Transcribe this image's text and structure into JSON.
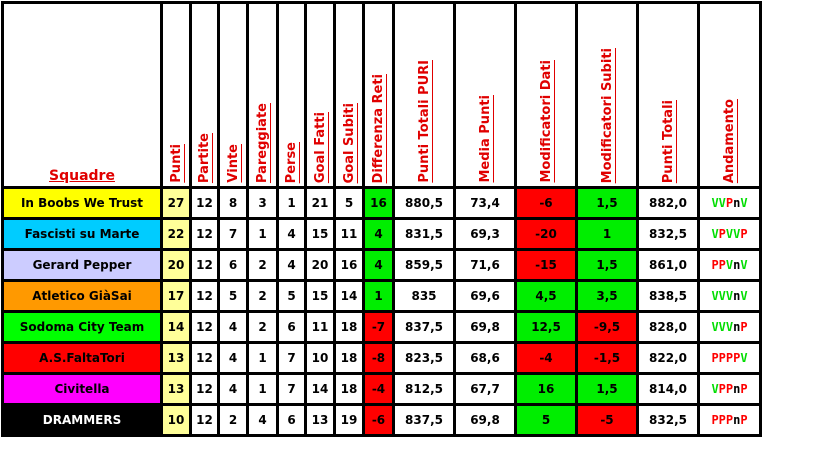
{
  "headers": [
    "Squadre",
    "Punti",
    "Partite",
    "Vinte",
    "Pareggiate",
    "Perse",
    "Goal Fatti",
    "Goal Subiti",
    "Differenza Reti",
    "Punti Totali PURI",
    "Media Punti",
    "Modificatori Dati",
    "Modificatori Subiti",
    "Punti Totali",
    "Andamento"
  ],
  "colors": {
    "positive": "#00ee00",
    "negative": "#ff0000",
    "punti_bg": "#ffff99",
    "win": "#00dd00",
    "loss": "#ff0000",
    "neutral": "#000000"
  },
  "rows": [
    {
      "team": "In Boobs We Trust",
      "team_bg": "#ffff00",
      "team_fg": "#000000",
      "punti": "27",
      "partite": "12",
      "vinte": "8",
      "pareggiate": "3",
      "perse": "1",
      "gf": "21",
      "gs": "5",
      "diff": "16",
      "puri": "880,5",
      "media": "73,4",
      "mod_dati": "-6",
      "mod_subiti": "1,5",
      "totali": "882,0",
      "andamento": "VVPnV"
    },
    {
      "team": "Fascisti su Marte",
      "team_bg": "#00ccff",
      "team_fg": "#000000",
      "punti": "22",
      "partite": "12",
      "vinte": "7",
      "pareggiate": "1",
      "perse": "4",
      "gf": "15",
      "gs": "11",
      "diff": "4",
      "puri": "831,5",
      "media": "69,3",
      "mod_dati": "-20",
      "mod_subiti": "1",
      "totali": "832,5",
      "andamento": "VPVVP"
    },
    {
      "team": "Gerard Pepper",
      "team_bg": "#ccccff",
      "team_fg": "#000000",
      "punti": "20",
      "partite": "12",
      "vinte": "6",
      "pareggiate": "2",
      "perse": "4",
      "gf": "20",
      "gs": "16",
      "diff": "4",
      "puri": "859,5",
      "media": "71,6",
      "mod_dati": "-15",
      "mod_subiti": "1,5",
      "totali": "861,0",
      "andamento": "PPVnV"
    },
    {
      "team": "Atletico GiàSai",
      "team_bg": "#ff9900",
      "team_fg": "#000000",
      "punti": "17",
      "partite": "12",
      "vinte": "5",
      "pareggiate": "2",
      "perse": "5",
      "gf": "15",
      "gs": "14",
      "diff": "1",
      "puri": "835",
      "media": "69,6",
      "mod_dati": "4,5",
      "mod_subiti": "3,5",
      "totali": "838,5",
      "andamento": "VVVnV"
    },
    {
      "team": "Sodoma City Team",
      "team_bg": "#00ff00",
      "team_fg": "#000000",
      "punti": "14",
      "partite": "12",
      "vinte": "4",
      "pareggiate": "2",
      "perse": "6",
      "gf": "11",
      "gs": "18",
      "diff": "-7",
      "puri": "837,5",
      "media": "69,8",
      "mod_dati": "12,5",
      "mod_subiti": "-9,5",
      "totali": "828,0",
      "andamento": "VVVnP"
    },
    {
      "team": "A.S.FaltaTori",
      "team_bg": "#ff0000",
      "team_fg": "#000000",
      "punti": "13",
      "partite": "12",
      "vinte": "4",
      "pareggiate": "1",
      "perse": "7",
      "gf": "10",
      "gs": "18",
      "diff": "-8",
      "puri": "823,5",
      "media": "68,6",
      "mod_dati": "-4",
      "mod_subiti": "-1,5",
      "totali": "822,0",
      "andamento": "PPPPV"
    },
    {
      "team": "Civitella",
      "team_bg": "#ff00ff",
      "team_fg": "#000000",
      "punti": "13",
      "partite": "12",
      "vinte": "4",
      "pareggiate": "1",
      "perse": "7",
      "gf": "14",
      "gs": "18",
      "diff": "-4",
      "puri": "812,5",
      "media": "67,7",
      "mod_dati": "16",
      "mod_subiti": "1,5",
      "totali": "814,0",
      "andamento": "VPPnP"
    },
    {
      "team": "DRAMMERS",
      "team_bg": "#000000",
      "team_fg": "#ffffff",
      "punti": "10",
      "partite": "12",
      "vinte": "2",
      "pareggiate": "4",
      "perse": "6",
      "gf": "13",
      "gs": "19",
      "diff": "-6",
      "puri": "837,5",
      "media": "69,8",
      "mod_dati": "5",
      "mod_subiti": "-5",
      "totali": "832,5",
      "andamento": "PPPnP"
    }
  ]
}
